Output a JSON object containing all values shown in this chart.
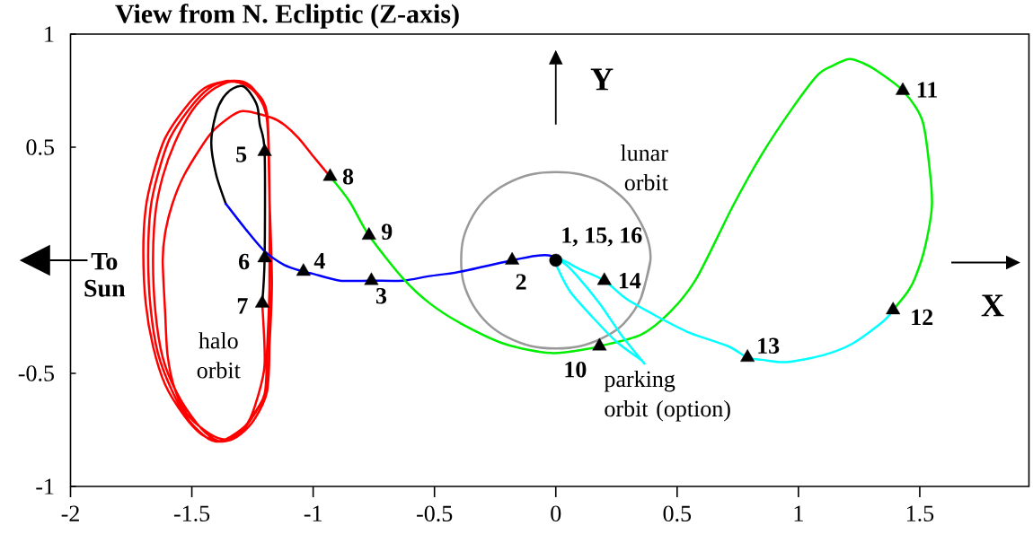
{
  "chart_data": {
    "type": "line",
    "title": "View from N. Ecliptic (Z-axis)",
    "xlim": [
      -2,
      1.95
    ],
    "ylim": [
      -1,
      1
    ],
    "xticks": [
      -2,
      -1.5,
      -1,
      -0.5,
      0,
      0.5,
      1,
      1.5
    ],
    "yticks": [
      -1,
      -0.5,
      0.5,
      1
    ],
    "series": [
      {
        "type": "line",
        "color": "#999999",
        "x": [
          0.35,
          0.39,
          0.37,
          0.3,
          0.2,
          0.1,
          0,
          -0.1,
          -0.2,
          -0.28,
          -0.34,
          -0.38,
          -0.39,
          -0.38,
          -0.34,
          -0.28,
          -0.2,
          -0.1,
          0,
          0.1,
          0.2,
          0.28,
          0.35,
          0.39
        ],
        "values": [
          -0.17,
          0,
          0.12,
          0.25,
          0.34,
          0.38,
          0.39,
          0.38,
          0.34,
          0.28,
          0.2,
          0.1,
          0,
          -0.1,
          -0.2,
          -0.28,
          -0.34,
          -0.38,
          -0.39,
          -0.38,
          -0.34,
          -0.28,
          -0.17,
          0
        ]
      },
      {
        "type": "line",
        "color": "#ff0000",
        "x": [
          -1.21,
          -1.2,
          -1.23,
          -1.27,
          -1.34,
          -1.39,
          -1.46,
          -1.53,
          -1.61,
          -1.66,
          -1.69,
          -1.7,
          -1.69,
          -1.66,
          -1.61,
          -1.53,
          -1.45,
          -1.37,
          -1.29,
          -1.24,
          -1.19,
          -1.18,
          -1.18,
          -1.18,
          -1.19,
          -1.25,
          -1.31,
          -1.37,
          -1.43,
          -1.51,
          -1.58,
          -1.64,
          -1.67,
          -1.68,
          -1.67,
          -1.64,
          -1.59,
          -1.51,
          -1.43,
          -1.36,
          -1.29,
          -1.23,
          -1.19,
          -1.18,
          -1.17,
          -1.18,
          -1.19,
          -1.24,
          -1.3,
          -1.36,
          -1.41,
          -1.48,
          -1.56,
          -1.62,
          -1.65,
          -1.66,
          -1.65,
          -1.62,
          -1.57,
          -1.5,
          -1.42,
          -1.34,
          -1.28,
          -1.23,
          -1.19,
          -1.18,
          -1.18,
          -1.19,
          -1.2,
          -1.26,
          -1.32,
          -1.38,
          -1.45,
          -1.52,
          -1.57,
          -1.6,
          -1.61,
          -1.62,
          -1.61,
          -1.58,
          -1.53,
          -1.43,
          -1.36,
          -1.29,
          -1.17,
          -1.12,
          -1.06,
          -1.0,
          -0.93
        ],
        "values": [
          -0.19,
          -0.46,
          -0.61,
          -0.72,
          -0.78,
          -0.8,
          -0.77,
          -0.69,
          -0.55,
          -0.38,
          -0.19,
          0.04,
          0.23,
          0.38,
          0.54,
          0.67,
          0.76,
          0.79,
          0.79,
          0.75,
          0.65,
          0.3,
          -0.08,
          -0.38,
          -0.57,
          -0.69,
          -0.77,
          -0.8,
          -0.79,
          -0.71,
          -0.58,
          -0.41,
          -0.21,
          0.02,
          0.23,
          0.38,
          0.54,
          0.67,
          0.76,
          0.79,
          0.78,
          0.73,
          0.63,
          0.28,
          -0.1,
          -0.38,
          -0.58,
          -0.7,
          -0.77,
          -0.8,
          -0.79,
          -0.72,
          -0.59,
          -0.43,
          -0.23,
          0.0,
          0.21,
          0.37,
          0.52,
          0.66,
          0.75,
          0.79,
          0.78,
          0.73,
          0.62,
          0.26,
          -0.12,
          -0.4,
          -0.59,
          -0.71,
          -0.78,
          -0.79,
          -0.75,
          -0.68,
          -0.57,
          -0.42,
          -0.23,
          0.0,
          0.12,
          0.25,
          0.38,
          0.55,
          0.62,
          0.66,
          0.63,
          0.6,
          0.54,
          0.46,
          0.37
        ]
      },
      {
        "type": "line",
        "color": "#000000",
        "x": [
          -1.36,
          -1.4,
          -1.42,
          -1.4,
          -1.37,
          -1.33,
          -1.29,
          -1.26,
          -1.23,
          -1.22,
          -1.2,
          -1.2,
          -1.21
        ],
        "values": [
          0.25,
          0.38,
          0.52,
          0.65,
          0.72,
          0.76,
          0.77,
          0.74,
          0.68,
          0.6,
          0.48,
          0.01,
          -0.19
        ]
      },
      {
        "type": "line",
        "color": "#0000ff",
        "x": [
          -1.36,
          -1.28,
          -1.2,
          -1.12,
          -1.04,
          -1.0,
          -0.89,
          -0.76,
          -0.63,
          -0.52,
          -0.39,
          -0.18,
          -0.08,
          -0.02,
          0
        ],
        "values": [
          0.25,
          0.14,
          0.04,
          -0.02,
          -0.05,
          -0.06,
          -0.09,
          -0.09,
          -0.09,
          -0.07,
          -0.05,
          0.0,
          0.02,
          0.02,
          0
        ]
      },
      {
        "type": "line",
        "color": "#00ee00",
        "x": [
          -0.93,
          -0.85,
          -0.77,
          -0.63,
          -0.52,
          -0.39,
          -0.21,
          -0.02,
          0.14,
          0.18,
          0.35,
          0.47,
          0.58,
          0.73,
          0.85,
          0.98,
          1.08,
          1.14,
          1.21,
          1.27,
          1.32,
          1.43,
          1.51,
          1.54,
          1.55,
          1.52,
          1.48,
          1.45,
          1.39
        ],
        "values": [
          0.37,
          0.26,
          0.11,
          -0.08,
          -0.19,
          -0.28,
          -0.37,
          -0.41,
          -0.39,
          -0.38,
          -0.33,
          -0.23,
          -0.08,
          0.24,
          0.47,
          0.68,
          0.82,
          0.86,
          0.89,
          0.87,
          0.84,
          0.75,
          0.62,
          0.41,
          0.24,
          0.05,
          -0.08,
          -0.14,
          -0.22
        ]
      },
      {
        "type": "line",
        "color": "#00ffff",
        "x": [
          1.39,
          1.35,
          1.22,
          1.1,
          0.95,
          0.85,
          0.79,
          0.71,
          0.55,
          0.42,
          0.29,
          0.2,
          0.1,
          0.03,
          0,
          0.01,
          0.06,
          0.15,
          0.25,
          0.35,
          0.36,
          0.27,
          0.18,
          0.08,
          0.03,
          0
        ],
        "values": [
          -0.22,
          -0.27,
          -0.37,
          -0.42,
          -0.45,
          -0.44,
          -0.43,
          -0.38,
          -0.32,
          -0.25,
          -0.17,
          -0.09,
          -0.04,
          0.0,
          0,
          -0.04,
          -0.14,
          -0.25,
          -0.36,
          -0.44,
          -0.45,
          -0.33,
          -0.19,
          -0.06,
          -0.01,
          0
        ]
      },
      {
        "type": "scatter",
        "color": "#000000",
        "marker": "triangle",
        "x": [
          -0.18,
          -0.76,
          -1.04,
          -1.2,
          -1.2,
          -1.21,
          -0.93,
          -0.77,
          0.18,
          1.43,
          1.39,
          0.79,
          0.2
        ],
        "values": [
          0,
          -0.09,
          -0.05,
          0.48,
          0.01,
          -0.19,
          0.37,
          0.11,
          -0.38,
          0.75,
          -0.22,
          -0.43,
          -0.09
        ]
      },
      {
        "type": "scatter",
        "color": "#000000",
        "marker": "circle",
        "x": [
          0
        ],
        "values": [
          0
        ]
      }
    ],
    "annotations": [
      {
        "text": "1, 15, 16",
        "x": 0,
        "y": 0
      },
      {
        "text": "2",
        "x": -0.18,
        "y": 0
      },
      {
        "text": "3",
        "x": -0.76,
        "y": -0.09
      },
      {
        "text": "4",
        "x": -1.04,
        "y": -0.05
      },
      {
        "text": "5",
        "x": -1.2,
        "y": 0.48
      },
      {
        "text": "6",
        "x": -1.2,
        "y": 0.01
      },
      {
        "text": "7",
        "x": -1.21,
        "y": -0.19
      },
      {
        "text": "8",
        "x": -0.93,
        "y": 0.37
      },
      {
        "text": "9",
        "x": -0.77,
        "y": 0.11
      },
      {
        "text": "10",
        "x": 0.18,
        "y": -0.38
      },
      {
        "text": "11",
        "x": 1.43,
        "y": 0.75
      },
      {
        "text": "12",
        "x": 1.39,
        "y": -0.22
      },
      {
        "text": "13",
        "x": 0.79,
        "y": -0.43
      },
      {
        "text": "14",
        "x": 0.2,
        "y": -0.09
      },
      "Y",
      "X",
      "To Sun",
      "lunar orbit",
      "halo orbit",
      "parking orbit (option)"
    ]
  }
}
